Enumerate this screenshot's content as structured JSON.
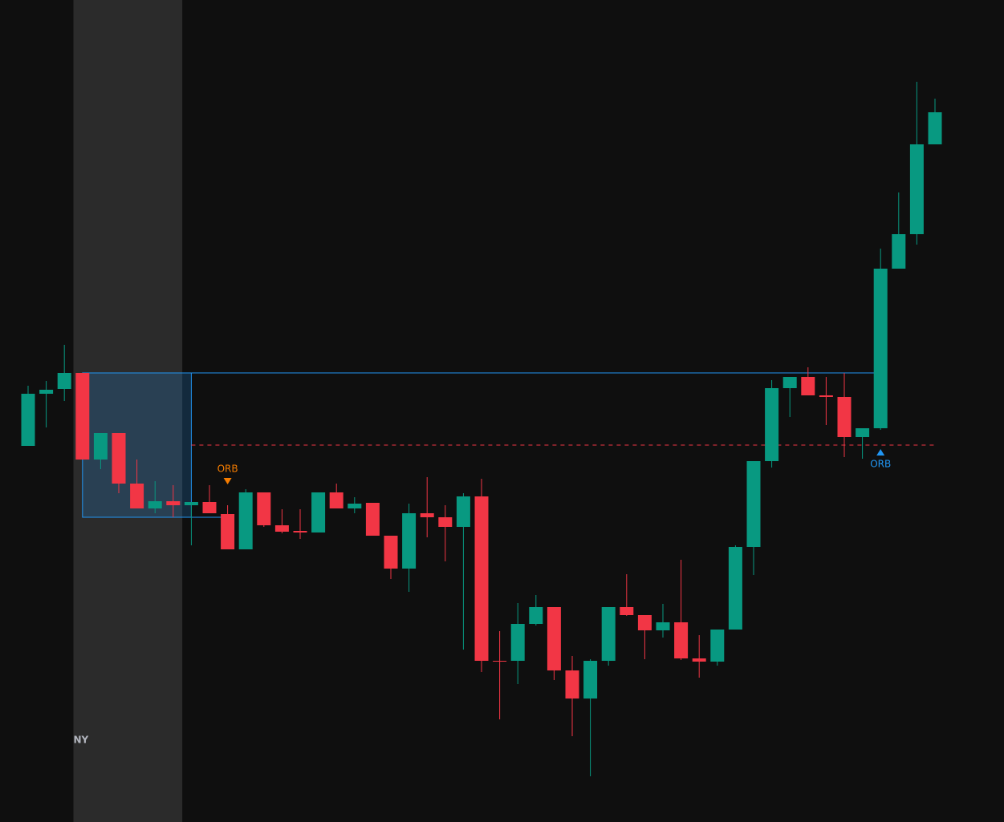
{
  "chart_data": {
    "type": "candlestick",
    "ylim": [
      0,
      1025
    ],
    "up_color": "#089981",
    "down_color": "#f23645",
    "open": [
      469,
      534,
      540,
      560,
      452,
      485,
      422,
      391,
      400,
      395,
      399,
      384,
      340,
      411,
      370,
      363,
      361,
      411,
      391,
      398,
      357,
      316,
      385,
      380,
      368,
      406,
      201,
      201,
      247,
      268,
      189,
      154,
      201,
      268,
      258,
      239,
      249,
      204,
      200,
      240,
      343,
      450,
      541,
      555,
      532,
      530,
      480,
      491,
      690,
      733,
      845
    ],
    "high": [
      544,
      550,
      595,
      560,
      485,
      485,
      452,
      425,
      420,
      399,
      420,
      395,
      415,
      411,
      390,
      390,
      411,
      422,
      405,
      398,
      357,
      397,
      430,
      395,
      410,
      428,
      238,
      273,
      283,
      268,
      207,
      203,
      268,
      309,
      258,
      272,
      327,
      233,
      240,
      345,
      450,
      551,
      555,
      567,
      555,
      560,
      491,
      715,
      785,
      923,
      902
    ],
    "low": [
      469,
      492,
      525,
      452,
      440,
      410,
      391,
      385,
      380,
      345,
      385,
      340,
      340,
      368,
      360,
      353,
      361,
      391,
      385,
      357,
      303,
      287,
      355,
      325,
      215,
      187,
      128,
      172,
      245,
      177,
      107,
      57,
      195,
      257,
      203,
      230,
      202,
      180,
      195,
      240,
      308,
      442,
      505,
      532,
      495,
      455,
      453,
      489,
      690,
      720,
      845
    ],
    "close": [
      534,
      539,
      560,
      452,
      485,
      422,
      391,
      400,
      395,
      399,
      385,
      340,
      411,
      370,
      362,
      361,
      411,
      391,
      397,
      357,
      316,
      385,
      380,
      368,
      406,
      201,
      200,
      247,
      268,
      189,
      154,
      201,
      268,
      258,
      239,
      249,
      204,
      200,
      240,
      343,
      450,
      541,
      555,
      532,
      530,
      480,
      491,
      690,
      733,
      845,
      885
    ],
    "session": {
      "label": "NY",
      "start": 3,
      "end": 8,
      "color": "#2b2b2b"
    },
    "orb": {
      "high": 560,
      "low": 380,
      "mid": 470,
      "start": 3,
      "end": 9,
      "extend_to": 47,
      "color": "#2196f3",
      "mid_color": "#f23645"
    },
    "signals": [
      {
        "label": "ORB",
        "candle": 11,
        "direction": "down",
        "color": "#f57c00"
      },
      {
        "label": "ORB",
        "candle": 47,
        "direction": "up",
        "color": "#2196f3"
      }
    ]
  }
}
